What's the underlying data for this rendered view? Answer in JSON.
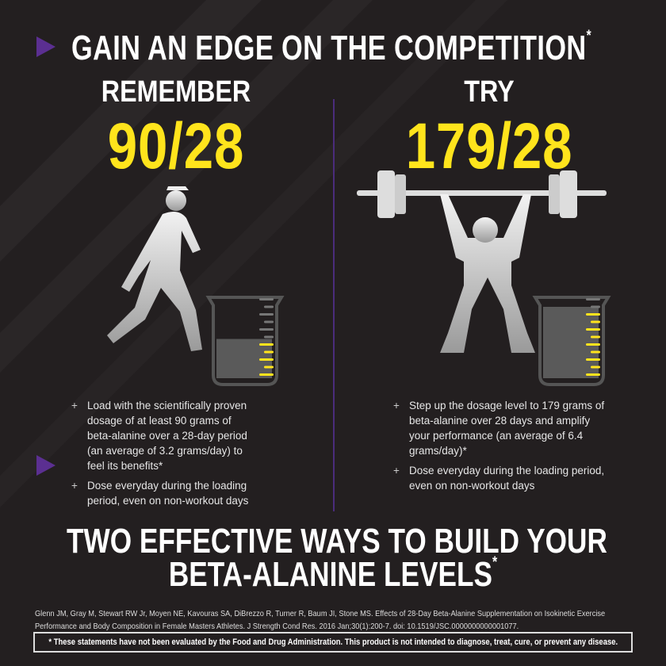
{
  "header": {
    "title": "GAIN AN EDGE ON THE COMPETITION",
    "asterisk": "*"
  },
  "left": {
    "heading": "REMEMBER",
    "ratio": "90/28",
    "beaker_fill_fraction": 0.55,
    "bullets": [
      "Load with the scientifically proven dosage of at least 90 grams of beta-alanine over a 28-day period (an average of 3.2 grams/day) to feel its benefits*",
      "Dose everyday during the loading period, even on non-workout days"
    ]
  },
  "right": {
    "heading": "TRY",
    "ratio": "179/28",
    "beaker_fill_fraction": 1.0,
    "bullets": [
      "Step up the dosage level to 179 grams of beta-alanine over 28 days and amplify your performance (an average of 6.4 grams/day)*",
      "Dose everyday during the loading period, even on non-workout days"
    ]
  },
  "footer": {
    "line1": "TWO EFFECTIVE WAYS TO BUILD YOUR",
    "line2": "BETA-ALANINE LEVELS",
    "asterisk": "*",
    "citation": "Glenn JM, Gray M, Stewart RW Jr, Moyen NE, Kavouras SA, DiBrezzo R, Turner R, Baum JI, Stone MS. Effects of 28-Day Beta-Alanine Supplementation on Isokinetic Exercise Performance and Body Composition in Female Masters Athletes. J Strength Cond Res. 2016 Jan;30(1):200-7. doi: 10.1519/JSC.0000000000001077.",
    "disclaimer": "* These statements have not been evaluated by the Food and Drug Administration. This product is not intended to diagnose, treat, cure, or prevent any disease."
  },
  "colors": {
    "background": "#231f20",
    "accent_yellow": "#ffe41c",
    "accent_purple": "#5b2f91"
  },
  "icons": [
    "play-triangle-icon",
    "runner-icon",
    "weightlifter-icon",
    "beaker-icon"
  ]
}
